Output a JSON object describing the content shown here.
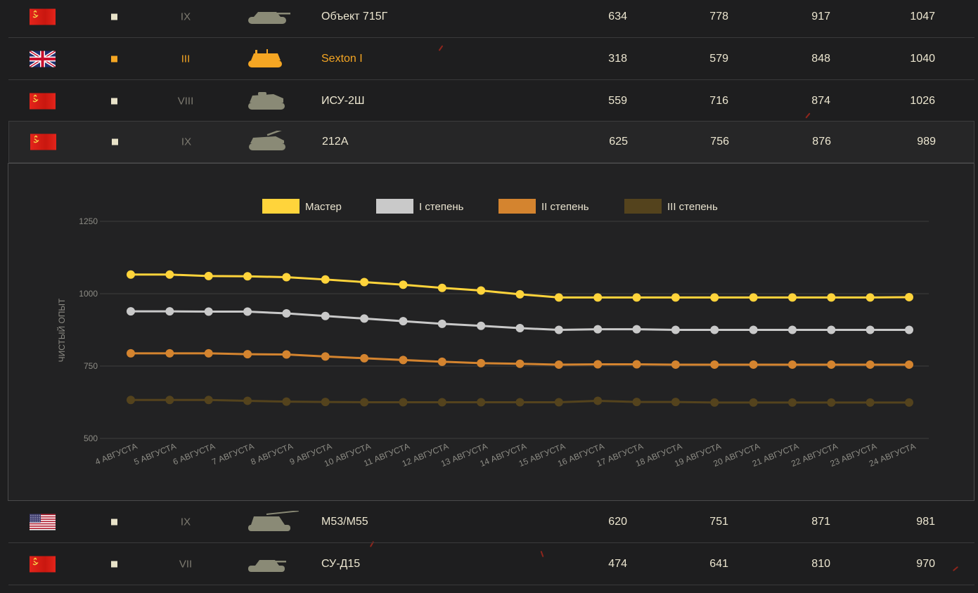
{
  "colors": {
    "master": "#ffd43b",
    "first": "#c9c9c9",
    "second": "#d4842f",
    "third": "#54431d",
    "premium": "#f5a623"
  },
  "rows_top": [
    {
      "flag": "ussr-flag",
      "tier": "IX",
      "name": "Объект 715Г",
      "premium": false,
      "values": [
        "634",
        "778",
        "917",
        "1047"
      ]
    },
    {
      "flag": "uk-flag",
      "tier": "III",
      "name": "Sexton I",
      "premium": true,
      "values": [
        "318",
        "579",
        "848",
        "1040"
      ]
    },
    {
      "flag": "ussr-flag",
      "tier": "VIII",
      "name": "ИСУ-2Ш",
      "premium": false,
      "values": [
        "559",
        "716",
        "874",
        "1026"
      ]
    },
    {
      "flag": "ussr-flag",
      "tier": "IX",
      "name": "212А",
      "premium": false,
      "values": [
        "625",
        "756",
        "876",
        "989"
      ]
    }
  ],
  "rows_bottom": [
    {
      "flag": "usa-flag",
      "tier": "IX",
      "name": "M53/M55",
      "premium": false,
      "values": [
        "620",
        "751",
        "871",
        "981"
      ]
    },
    {
      "flag": "ussr-flag",
      "tier": "VII",
      "name": "СУ-Д15",
      "premium": false,
      "values": [
        "474",
        "641",
        "810",
        "970"
      ]
    }
  ],
  "chart_data": {
    "type": "line",
    "title": "",
    "xlabel": "",
    "ylabel": "ЧИСТЫЙ ОПЫТ",
    "ylim": [
      500,
      1250
    ],
    "yticks": [
      500,
      750,
      1000,
      1250
    ],
    "grid": true,
    "legend_position": "top-center",
    "categories": [
      "4 АВГУСТА",
      "5 АВГУСТА",
      "6 АВГУСТА",
      "7 АВГУСТА",
      "8 АВГУСТА",
      "9 АВГУСТА",
      "10 АВГУСТА",
      "11 АВГУСТА",
      "12 АВГУСТА",
      "13 АВГУСТА",
      "14 АВГУСТА",
      "15 АВГУСТА",
      "16 АВГУСТА",
      "17 АВГУСТА",
      "18 АВГУСТА",
      "19 АВГУСТА",
      "20 АВГУСТА",
      "21 АВГУСТА",
      "22 АВГУСТА",
      "23 АВГУСТА",
      "24 АВГУСТА"
    ],
    "series": [
      {
        "name": "Мастер",
        "color": "#ffd43b",
        "values": [
          1066,
          1066,
          1061,
          1060,
          1057,
          1049,
          1040,
          1031,
          1020,
          1011,
          998,
          987,
          987,
          987,
          987,
          987,
          987,
          987,
          987,
          987,
          988
        ]
      },
      {
        "name": "I степень",
        "color": "#c9c9c9",
        "values": [
          939,
          939,
          938,
          938,
          932,
          923,
          914,
          905,
          896,
          889,
          881,
          875,
          877,
          877,
          875,
          875,
          875,
          875,
          875,
          875,
          875
        ]
      },
      {
        "name": "II степень",
        "color": "#d4842f",
        "values": [
          794,
          794,
          794,
          791,
          790,
          783,
          777,
          771,
          765,
          760,
          758,
          755,
          756,
          756,
          755,
          755,
          755,
          755,
          755,
          755,
          755
        ]
      },
      {
        "name": "III степень",
        "color": "#54431d",
        "values": [
          633,
          633,
          633,
          630,
          627,
          626,
          625,
          625,
          625,
          625,
          625,
          625,
          630,
          626,
          626,
          624,
          624,
          624,
          624,
          624,
          624
        ]
      }
    ]
  }
}
